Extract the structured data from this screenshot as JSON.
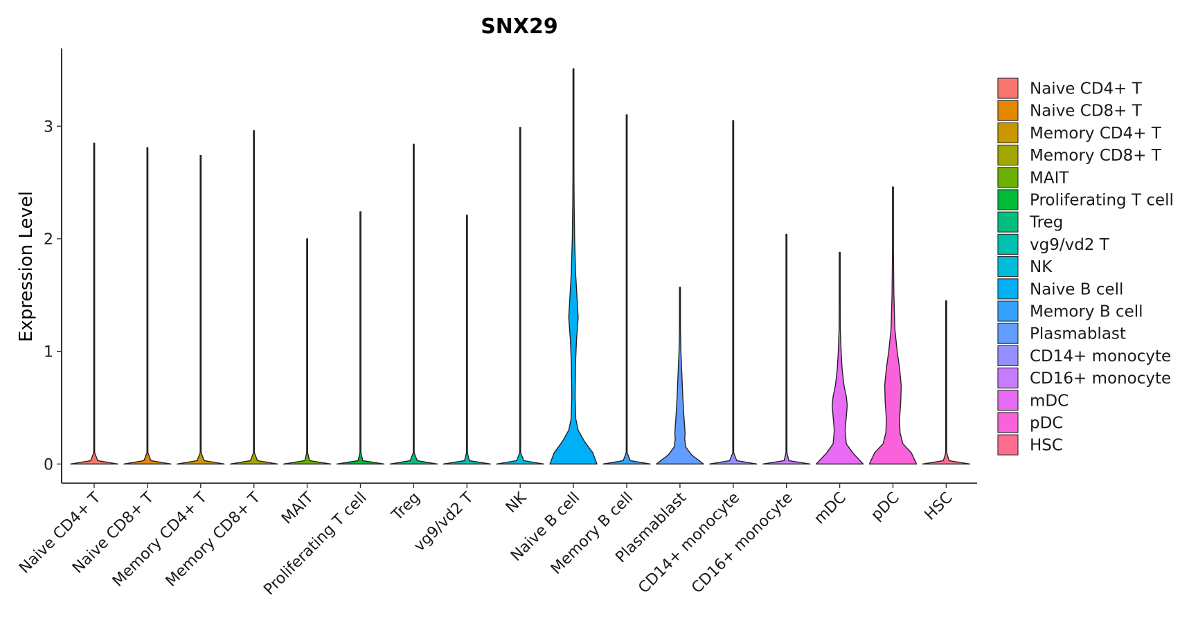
{
  "chart_data": {
    "type": "violin",
    "title": "SNX29",
    "xlabel": "",
    "ylabel": "Expression Level",
    "ylim": [
      -0.17,
      3.69
    ],
    "yticks": [
      0,
      1,
      2,
      3
    ],
    "ytick_labels": [
      "0",
      "1",
      "2",
      "3"
    ],
    "grid": false,
    "legend_position": "right",
    "categories": [
      "Naive CD4+ T",
      "Naive CD8+ T",
      "Memory CD4+ T",
      "Memory CD8+ T",
      "MAIT",
      "Proliferating T cell",
      "Treg",
      "vg9/vd2 T",
      "NK",
      "Naive B cell",
      "Memory B cell",
      "Plasmablast",
      "CD14+ monocyte",
      "CD16+ monocyte",
      "mDC",
      "pDC",
      "HSC"
    ],
    "colors": [
      "#F8766D",
      "#E58700",
      "#C99800",
      "#A3A500",
      "#6BB100",
      "#00BA38",
      "#00BF7D",
      "#00C0AF",
      "#00BCD8",
      "#00B0F6",
      "#35A2FF",
      "#619CFF",
      "#9590FF",
      "#C77CFF",
      "#E76BF3",
      "#FA62DB",
      "#FF6C91"
    ],
    "max_values": [
      2.85,
      2.81,
      2.74,
      2.96,
      2.0,
      2.24,
      2.84,
      2.21,
      2.99,
      3.51,
      3.1,
      1.57,
      3.05,
      2.04,
      1.88,
      2.46,
      1.45
    ],
    "density_profiles": [
      [
        [
          0,
          1.0
        ],
        [
          0.03,
          0.15
        ],
        [
          0.1,
          0.02
        ]
      ],
      [
        [
          0,
          1.0
        ],
        [
          0.03,
          0.15
        ],
        [
          0.1,
          0.02
        ]
      ],
      [
        [
          0,
          1.0
        ],
        [
          0.03,
          0.15
        ],
        [
          0.1,
          0.02
        ]
      ],
      [
        [
          0,
          1.0
        ],
        [
          0.03,
          0.15
        ],
        [
          0.1,
          0.02
        ]
      ],
      [
        [
          0,
          1.0
        ],
        [
          0.03,
          0.1
        ],
        [
          0.1,
          0.02
        ]
      ],
      [
        [
          0,
          1.0
        ],
        [
          0.03,
          0.1
        ],
        [
          0.1,
          0.02
        ]
      ],
      [
        [
          0,
          1.0
        ],
        [
          0.03,
          0.15
        ],
        [
          0.1,
          0.02
        ]
      ],
      [
        [
          0,
          1.0
        ],
        [
          0.03,
          0.1
        ],
        [
          0.1,
          0.02
        ]
      ],
      [
        [
          0,
          1.0
        ],
        [
          0.03,
          0.15
        ],
        [
          0.1,
          0.02
        ]
      ],
      [
        [
          0,
          1.0
        ],
        [
          0.1,
          0.82
        ],
        [
          0.2,
          0.47
        ],
        [
          0.3,
          0.2
        ],
        [
          0.4,
          0.1
        ],
        [
          0.6,
          0.07
        ],
        [
          0.9,
          0.09
        ],
        [
          1.1,
          0.13
        ],
        [
          1.3,
          0.2
        ],
        [
          1.45,
          0.16
        ],
        [
          1.7,
          0.09
        ],
        [
          2.0,
          0.05
        ],
        [
          2.3,
          0.03
        ],
        [
          2.6,
          0.012
        ],
        [
          3.0,
          0.005
        ]
      ],
      [
        [
          0,
          1.0
        ],
        [
          0.03,
          0.15
        ],
        [
          0.1,
          0.02
        ]
      ],
      [
        [
          0,
          1.0
        ],
        [
          0.08,
          0.5
        ],
        [
          0.15,
          0.25
        ],
        [
          0.22,
          0.2
        ],
        [
          0.27,
          0.22
        ],
        [
          0.33,
          0.2
        ],
        [
          0.45,
          0.16
        ],
        [
          0.6,
          0.12
        ],
        [
          0.8,
          0.08
        ],
        [
          1.0,
          0.04
        ],
        [
          1.2,
          0.02
        ],
        [
          1.4,
          0.008
        ]
      ],
      [
        [
          0,
          1.0
        ],
        [
          0.03,
          0.15
        ],
        [
          0.1,
          0.02
        ]
      ],
      [
        [
          0,
          1.0
        ],
        [
          0.03,
          0.1
        ],
        [
          0.1,
          0.02
        ]
      ],
      [
        [
          0,
          1.0
        ],
        [
          0.1,
          0.55
        ],
        [
          0.18,
          0.28
        ],
        [
          0.3,
          0.23
        ],
        [
          0.42,
          0.28
        ],
        [
          0.52,
          0.32
        ],
        [
          0.6,
          0.28
        ],
        [
          0.7,
          0.18
        ],
        [
          0.85,
          0.1
        ],
        [
          1.0,
          0.06
        ],
        [
          1.2,
          0.025
        ],
        [
          1.5,
          0.01
        ]
      ],
      [
        [
          0,
          1.0
        ],
        [
          0.1,
          0.78
        ],
        [
          0.18,
          0.42
        ],
        [
          0.28,
          0.3
        ],
        [
          0.4,
          0.28
        ],
        [
          0.55,
          0.33
        ],
        [
          0.7,
          0.35
        ],
        [
          0.85,
          0.28
        ],
        [
          1.0,
          0.18
        ],
        [
          1.2,
          0.08
        ],
        [
          1.5,
          0.04
        ],
        [
          1.9,
          0.015
        ]
      ],
      [
        [
          0,
          1.0
        ],
        [
          0.03,
          0.12
        ],
        [
          0.1,
          0.02
        ]
      ]
    ]
  }
}
